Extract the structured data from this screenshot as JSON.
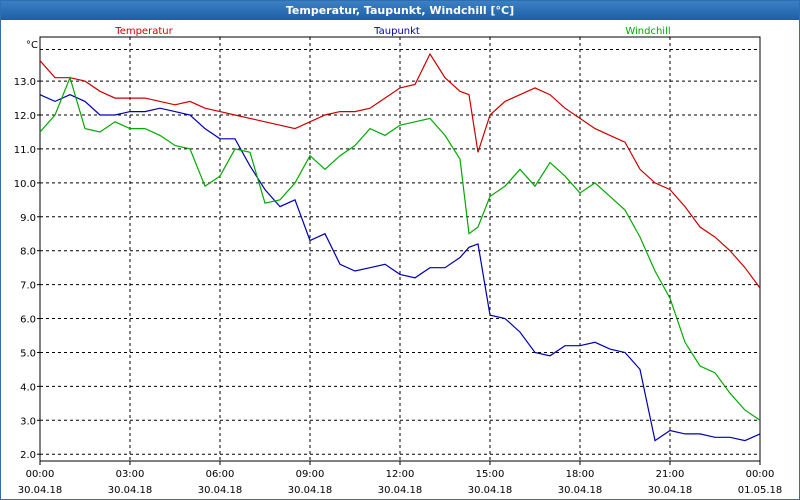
{
  "window": {
    "title": "Temperatur, Taupunkt, Windchill [°C]"
  },
  "colors": {
    "titlebar": "#1d5fa6",
    "temperatur": "#cc0000",
    "taupunkt": "#0000b0",
    "windchill": "#00aa00",
    "grid": "#000000"
  },
  "chart_data": {
    "type": "line",
    "title": "Temperatur, Taupunkt, Windchill [°C]",
    "ylabel": "°C",
    "xlabel": "",
    "ylim": [
      1.8,
      14.3
    ],
    "y_ticks": [
      2.0,
      3.0,
      4.0,
      5.0,
      6.0,
      7.0,
      8.0,
      9.0,
      10.0,
      11.0,
      12.0,
      13.0
    ],
    "y_tick_labels": [
      "2.0",
      "3.0",
      "4.0",
      "5.0",
      "6.0",
      "7.0",
      "8.0",
      "9.0",
      "10.0",
      "11.0",
      "12.0",
      "13.0"
    ],
    "x_unit": "hours since 30.04.18 00:00",
    "x_ticks": [
      0,
      3,
      6,
      9,
      12,
      15,
      18,
      21,
      24
    ],
    "x_tick_labels": [
      {
        "time": "00:00",
        "date": "30.04.18"
      },
      {
        "time": "03:00",
        "date": "30.04.18"
      },
      {
        "time": "06:00",
        "date": "30.04.18"
      },
      {
        "time": "09:00",
        "date": "30.04.18"
      },
      {
        "time": "12:00",
        "date": "30.04.18"
      },
      {
        "time": "15:00",
        "date": "30.04.18"
      },
      {
        "time": "18:00",
        "date": "30.04.18"
      },
      {
        "time": "21:00",
        "date": "30.04.18"
      },
      {
        "time": "00:00",
        "date": "01.05.18"
      }
    ],
    "grid": true,
    "legend": "top",
    "series": [
      {
        "name": "Temperatur",
        "color": "#cc0000",
        "points": [
          [
            0,
            13.6
          ],
          [
            0.5,
            13.1
          ],
          [
            1,
            13.1
          ],
          [
            1.5,
            13.0
          ],
          [
            2,
            12.7
          ],
          [
            2.5,
            12.5
          ],
          [
            3,
            12.5
          ],
          [
            3.5,
            12.5
          ],
          [
            4,
            12.4
          ],
          [
            4.5,
            12.3
          ],
          [
            5,
            12.4
          ],
          [
            5.5,
            12.2
          ],
          [
            6,
            12.1
          ],
          [
            6.5,
            12.0
          ],
          [
            7,
            11.9
          ],
          [
            7.5,
            11.8
          ],
          [
            8,
            11.7
          ],
          [
            8.5,
            11.6
          ],
          [
            9,
            11.8
          ],
          [
            9.5,
            12.0
          ],
          [
            10,
            12.1
          ],
          [
            10.5,
            12.1
          ],
          [
            11,
            12.2
          ],
          [
            11.5,
            12.5
          ],
          [
            12,
            12.8
          ],
          [
            12.5,
            12.9
          ],
          [
            13,
            13.8
          ],
          [
            13.5,
            13.1
          ],
          [
            14,
            12.7
          ],
          [
            14.3,
            12.6
          ],
          [
            14.6,
            10.9
          ],
          [
            15,
            12.0
          ],
          [
            15.5,
            12.4
          ],
          [
            16,
            12.6
          ],
          [
            16.5,
            12.8
          ],
          [
            17,
            12.6
          ],
          [
            17.5,
            12.2
          ],
          [
            18,
            11.9
          ],
          [
            18.5,
            11.6
          ],
          [
            19,
            11.4
          ],
          [
            19.5,
            11.2
          ],
          [
            20,
            10.4
          ],
          [
            20.5,
            10.0
          ],
          [
            21,
            9.8
          ],
          [
            21.5,
            9.3
          ],
          [
            22,
            8.7
          ],
          [
            22.5,
            8.4
          ],
          [
            23,
            8.0
          ],
          [
            23.5,
            7.5
          ],
          [
            24,
            6.9
          ]
        ]
      },
      {
        "name": "Taupunkt",
        "color": "#0000b0",
        "points": [
          [
            0,
            12.6
          ],
          [
            0.5,
            12.4
          ],
          [
            1,
            12.6
          ],
          [
            1.5,
            12.4
          ],
          [
            2,
            12.0
          ],
          [
            2.5,
            12.0
          ],
          [
            3,
            12.1
          ],
          [
            3.5,
            12.1
          ],
          [
            4,
            12.2
          ],
          [
            4.5,
            12.1
          ],
          [
            5,
            12.0
          ],
          [
            5.5,
            11.6
          ],
          [
            6,
            11.3
          ],
          [
            6.5,
            11.3
          ],
          [
            7,
            10.5
          ],
          [
            7.5,
            9.8
          ],
          [
            8,
            9.3
          ],
          [
            8.5,
            9.5
          ],
          [
            9,
            8.3
          ],
          [
            9.5,
            8.5
          ],
          [
            10,
            7.6
          ],
          [
            10.5,
            7.4
          ],
          [
            11,
            7.5
          ],
          [
            11.5,
            7.6
          ],
          [
            12,
            7.3
          ],
          [
            12.5,
            7.2
          ],
          [
            13,
            7.5
          ],
          [
            13.5,
            7.5
          ],
          [
            14,
            7.8
          ],
          [
            14.3,
            8.1
          ],
          [
            14.6,
            8.2
          ],
          [
            15,
            6.1
          ],
          [
            15.5,
            6.0
          ],
          [
            16,
            5.6
          ],
          [
            16.5,
            5.0
          ],
          [
            17,
            4.9
          ],
          [
            17.5,
            5.2
          ],
          [
            18,
            5.2
          ],
          [
            18.5,
            5.3
          ],
          [
            19,
            5.1
          ],
          [
            19.5,
            5.0
          ],
          [
            20,
            4.5
          ],
          [
            20.5,
            2.4
          ],
          [
            21,
            2.7
          ],
          [
            21.5,
            2.6
          ],
          [
            22,
            2.6
          ],
          [
            22.5,
            2.5
          ],
          [
            23,
            2.5
          ],
          [
            23.5,
            2.4
          ],
          [
            24,
            2.6
          ]
        ]
      },
      {
        "name": "Windchill",
        "color": "#00aa00",
        "points": [
          [
            0,
            11.5
          ],
          [
            0.5,
            12.0
          ],
          [
            1,
            13.1
          ],
          [
            1.5,
            11.6
          ],
          [
            2,
            11.5
          ],
          [
            2.5,
            11.8
          ],
          [
            3,
            11.6
          ],
          [
            3.5,
            11.6
          ],
          [
            4,
            11.4
          ],
          [
            4.5,
            11.1
          ],
          [
            5,
            11.0
          ],
          [
            5.5,
            9.9
          ],
          [
            6,
            10.2
          ],
          [
            6.5,
            11.0
          ],
          [
            7,
            10.9
          ],
          [
            7.5,
            9.4
          ],
          [
            8,
            9.5
          ],
          [
            8.5,
            10.0
          ],
          [
            9,
            10.8
          ],
          [
            9.5,
            10.4
          ],
          [
            10,
            10.8
          ],
          [
            10.5,
            11.1
          ],
          [
            11,
            11.6
          ],
          [
            11.5,
            11.4
          ],
          [
            12,
            11.7
          ],
          [
            12.5,
            11.8
          ],
          [
            13,
            11.9
          ],
          [
            13.5,
            11.4
          ],
          [
            14,
            10.7
          ],
          [
            14.3,
            8.5
          ],
          [
            14.6,
            8.7
          ],
          [
            15,
            9.6
          ],
          [
            15.5,
            9.9
          ],
          [
            16,
            10.4
          ],
          [
            16.5,
            9.9
          ],
          [
            17,
            10.6
          ],
          [
            17.5,
            10.2
          ],
          [
            18,
            9.7
          ],
          [
            18.5,
            10.0
          ],
          [
            19,
            9.6
          ],
          [
            19.5,
            9.2
          ],
          [
            20,
            8.4
          ],
          [
            20.5,
            7.4
          ],
          [
            21,
            6.6
          ],
          [
            21.5,
            5.3
          ],
          [
            22,
            4.6
          ],
          [
            22.5,
            4.4
          ],
          [
            23,
            3.8
          ],
          [
            23.5,
            3.3
          ],
          [
            24,
            3.0
          ]
        ]
      }
    ]
  }
}
